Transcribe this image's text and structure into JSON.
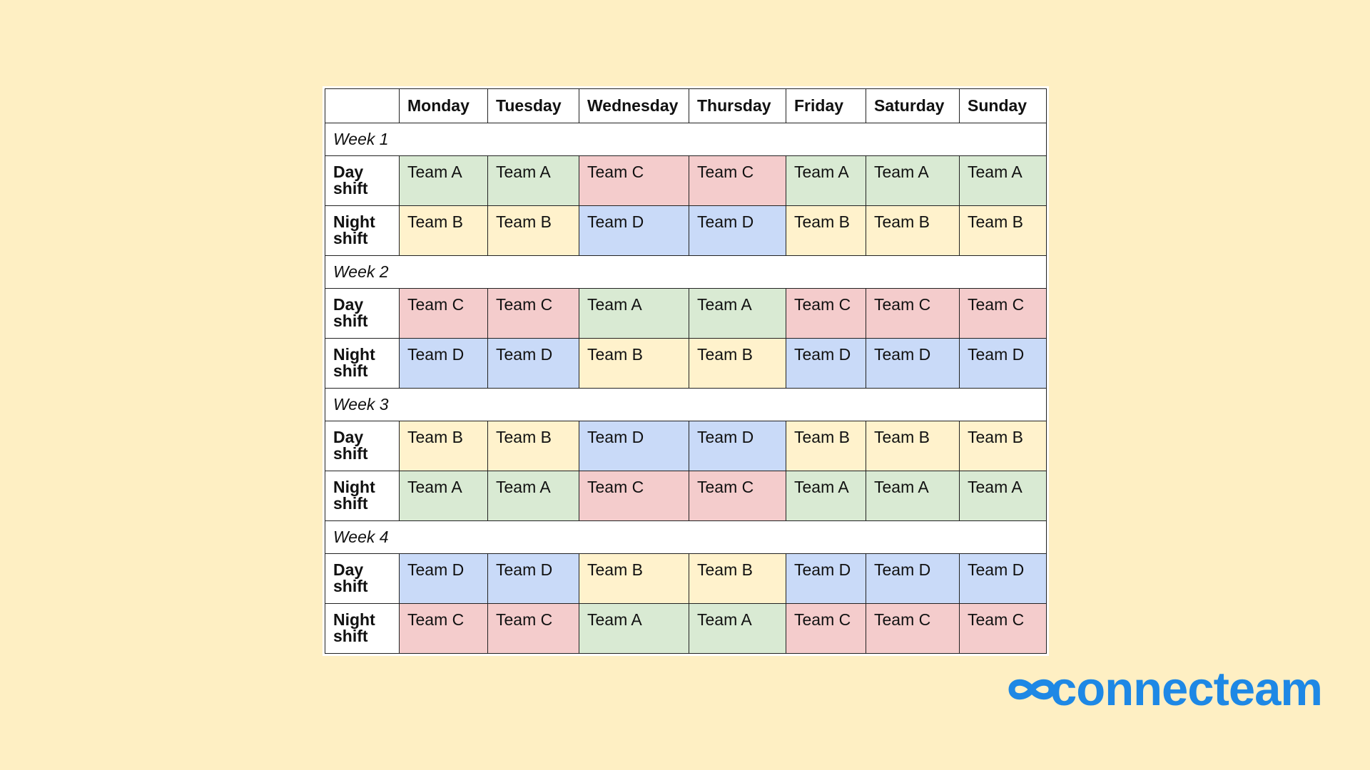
{
  "table": {
    "corner": "",
    "days": [
      "Monday",
      "Tuesday",
      "Wednesday",
      "Thursday",
      "Friday",
      "Saturday",
      "Sunday"
    ],
    "weeks": [
      {
        "label": "Week 1",
        "shifts": [
          {
            "label": "Day shift",
            "teams": [
              "Team A",
              "Team A",
              "Team C",
              "Team C",
              "Team A",
              "Team A",
              "Team A"
            ]
          },
          {
            "label": "Night shift",
            "teams": [
              "Team B",
              "Team B",
              "Team D",
              "Team D",
              "Team B",
              "Team B",
              "Team B"
            ]
          }
        ]
      },
      {
        "label": "Week 2",
        "shifts": [
          {
            "label": "Day shift",
            "teams": [
              "Team C",
              "Team C",
              "Team A",
              "Team A",
              "Team C",
              "Team C",
              "Team C"
            ]
          },
          {
            "label": "Night shift",
            "teams": [
              "Team D",
              "Team D",
              "Team B",
              "Team B",
              "Team D",
              "Team D",
              "Team D"
            ]
          }
        ]
      },
      {
        "label": "Week 3",
        "shifts": [
          {
            "label": "Day shift",
            "teams": [
              "Team B",
              "Team B",
              "Team D",
              "Team D",
              "Team B",
              "Team B",
              "Team B"
            ]
          },
          {
            "label": "Night shift",
            "teams": [
              "Team A",
              "Team A",
              "Team C",
              "Team C",
              "Team A",
              "Team A",
              "Team A"
            ]
          }
        ]
      },
      {
        "label": "Week 4",
        "shifts": [
          {
            "label": "Day shift",
            "teams": [
              "Team D",
              "Team D",
              "Team B",
              "Team B",
              "Team D",
              "Team D",
              "Team D"
            ]
          },
          {
            "label": "Night shift",
            "teams": [
              "Team C",
              "Team C",
              "Team A",
              "Team A",
              "Team C",
              "Team C",
              "Team C"
            ]
          }
        ]
      }
    ]
  },
  "team_colors": {
    "Team A": "#D9EAD3",
    "Team B": "#FFF2CC",
    "Team C": "#F4CCCC",
    "Team D": "#C9DAF8"
  },
  "logo": {
    "text": "connecteam",
    "color": "#1E88E5",
    "icon": "infinity-icon"
  },
  "background_color": "#FEEFC3"
}
